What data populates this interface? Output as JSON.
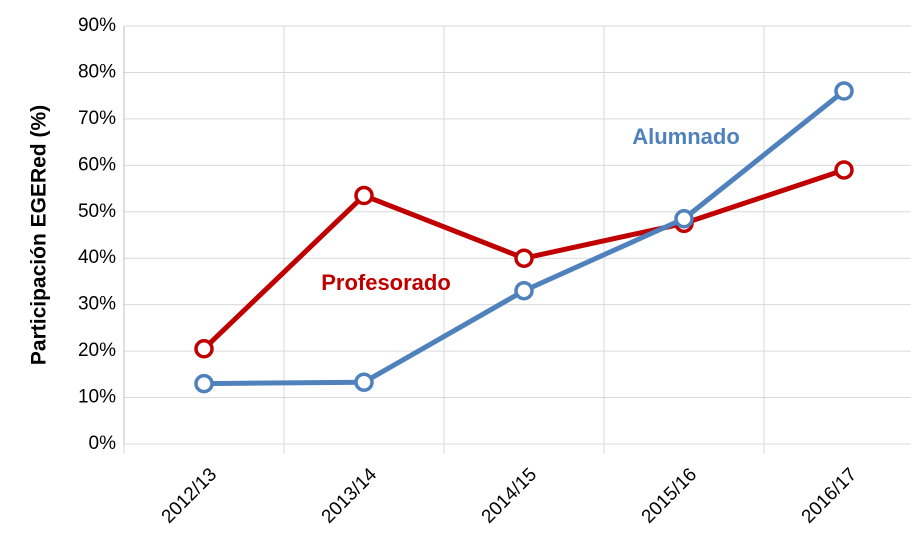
{
  "chart_data": {
    "type": "line",
    "y_label": "Participación EGERed (%)",
    "categories": [
      "2012/13",
      "2013/14",
      "2014/15",
      "2015/16",
      "2016/17"
    ],
    "series": [
      {
        "name": "Profesorado",
        "color": "#c00000",
        "values": [
          20.5,
          53.5,
          40,
          47.5,
          59
        ]
      },
      {
        "name": "Alumnado",
        "color": "#4f81bd",
        "values": [
          13,
          13.3,
          33,
          48.5,
          76
        ]
      }
    ],
    "ylim": [
      0,
      90
    ],
    "yticks": [
      {
        "value": 0,
        "label": "0%"
      },
      {
        "value": 10,
        "label": "10%"
      },
      {
        "value": 20,
        "label": "20%"
      },
      {
        "value": 30,
        "label": "30%"
      },
      {
        "value": 40,
        "label": "40%"
      },
      {
        "value": 50,
        "label": "50%"
      },
      {
        "value": 60,
        "label": "60%"
      },
      {
        "value": 70,
        "label": "70%"
      },
      {
        "value": 80,
        "label": "80%"
      },
      {
        "value": 90,
        "label": "90%"
      }
    ],
    "grid": true
  }
}
